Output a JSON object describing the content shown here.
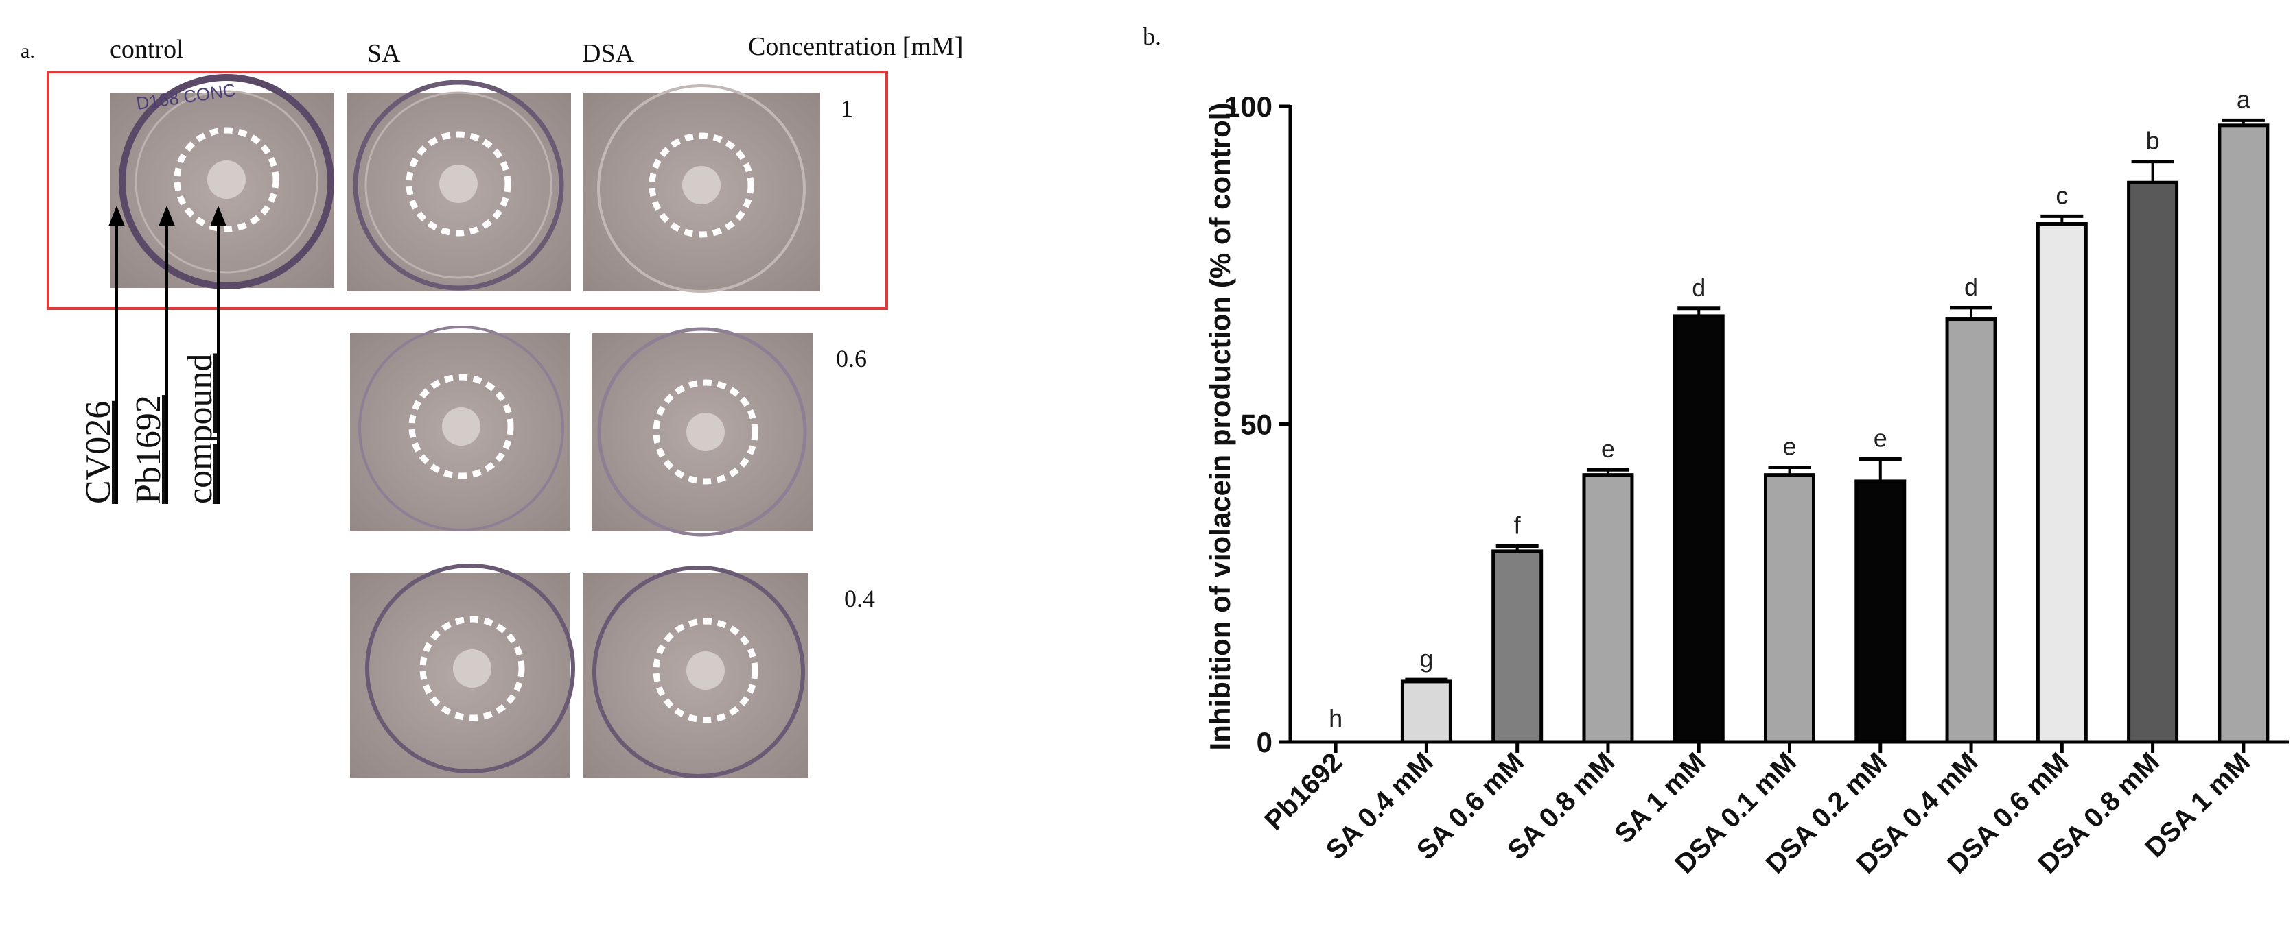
{
  "panel_a": {
    "label": "a.",
    "columns": [
      "control",
      "SA",
      "DSA"
    ],
    "concentration_header": "Concentration  [mM]",
    "concentrations": [
      "1",
      "0.6",
      "0.4"
    ],
    "arrow_labels": [
      "CV026",
      "Pb1692",
      "compound"
    ],
    "plate_text": "D168 CONC"
  },
  "panel_b": {
    "label": "b."
  },
  "colors": {
    "highlight_box": "#e03a3a",
    "plate_bg": "#a59a98",
    "plate_ring": "#5a4a68",
    "ring_dots": "#ffffff",
    "bar_black": "#050505",
    "bar_dark": "#595959",
    "bar_mid": "#7f7f7f",
    "bar_gray": "#a6a6a6",
    "bar_light": "#d9d9d9",
    "bar_lighter": "#e8e8e8"
  },
  "chart_data": {
    "type": "bar",
    "title": "",
    "xlabel": "",
    "ylabel": "Inhibition of violacein production (% of control)",
    "ylim": [
      0,
      100
    ],
    "yticks": [
      0,
      50,
      100
    ],
    "grid": false,
    "categories": [
      "Pb1692",
      "SA 0.4 mM",
      "SA 0.6 mM",
      "SA 0.8 mM",
      "SA 1 mM",
      "DSA 0.1 mM",
      "DSA 0.2 mM",
      "DSA 0.4 mM",
      "DSA 0.6 mM",
      "DSA 0.8 mM",
      "DSA 1 mM"
    ],
    "values": [
      0,
      9.5,
      30,
      42,
      67,
      42,
      41,
      66.5,
      81.5,
      88,
      97
    ],
    "errors": [
      0,
      0.3,
      0.8,
      0.8,
      1.2,
      1.2,
      3.5,
      1.8,
      1.2,
      3.3,
      0.8
    ],
    "significance": [
      "h",
      "g",
      "f",
      "e",
      "d",
      "e",
      "e",
      "d",
      "c",
      "b",
      "a"
    ],
    "bar_colors": [
      "#ffffff",
      "#d9d9d9",
      "#7f7f7f",
      "#a6a6a6",
      "#050505",
      "#a6a6a6",
      "#050505",
      "#a6a6a6",
      "#e8e8e8",
      "#595959",
      "#a6a6a6"
    ]
  }
}
